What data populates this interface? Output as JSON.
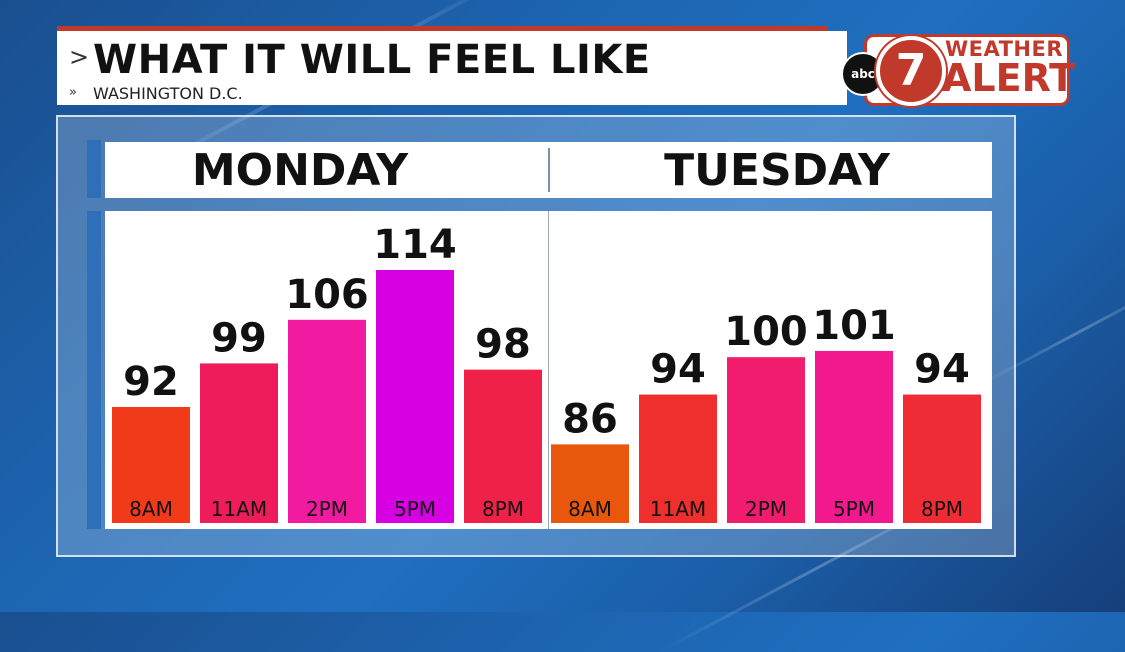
{
  "header": {
    "title": "WHAT IT WILL FEEL LIKE",
    "subtitle": "WASHINGTON D.C.",
    "chevron_big": ">",
    "chevron_small": "»"
  },
  "badge": {
    "network": "abc",
    "channel": "7",
    "line1": "WEATHER",
    "line2": "ALERT",
    "color": "#c0392b"
  },
  "chart_data": [
    {
      "type": "bar",
      "title": "MONDAY",
      "categories": [
        "8AM",
        "11AM",
        "2PM",
        "5PM",
        "8PM"
      ],
      "values": [
        92,
        99,
        106,
        114,
        98
      ],
      "colors": [
        "#f03a1a",
        "#ee1c5a",
        "#f21aa0",
        "#d700e2",
        "#ef2149"
      ]
    },
    {
      "type": "bar",
      "title": "TUESDAY",
      "categories": [
        "8AM",
        "11AM",
        "2PM",
        "5PM",
        "8PM"
      ],
      "values": [
        86,
        94,
        100,
        101,
        94
      ],
      "colors": [
        "#e8570c",
        "#ef2e2e",
        "#f21c6e",
        "#f2188d",
        "#ef2b35"
      ]
    }
  ]
}
